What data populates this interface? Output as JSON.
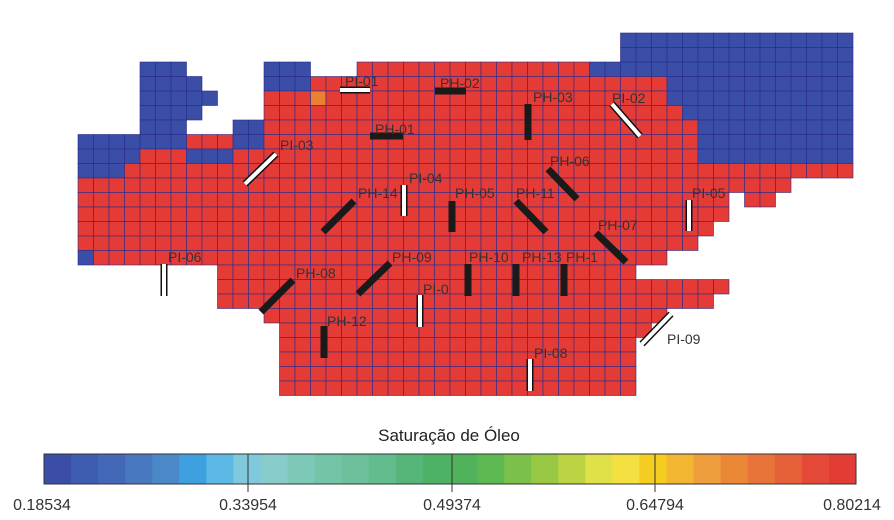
{
  "colors": {
    "red": "#e53b36",
    "blue": "#3a4ea8",
    "orange": "#ea8030",
    "cell_border": "#2b2b8a",
    "producer_fill": "#1a1a1a",
    "injector_fill": "#ffffff"
  },
  "map": {
    "wells": [
      {
        "id": "pi01",
        "label": "PI-01",
        "type": "injector"
      },
      {
        "id": "ph02",
        "label": "PH-02",
        "type": "producer"
      },
      {
        "id": "ph01",
        "label": "PH-01",
        "type": "producer"
      },
      {
        "id": "ph03",
        "label": "PH-03",
        "type": "producer"
      },
      {
        "id": "pi02",
        "label": "PI-02",
        "type": "injector"
      },
      {
        "id": "pi03",
        "label": "PI-03",
        "type": "injector"
      },
      {
        "id": "ph06",
        "label": "PH-06",
        "type": "producer"
      },
      {
        "id": "pi04",
        "label": "PI-04",
        "type": "injector"
      },
      {
        "id": "ph14",
        "label": "PH-14",
        "type": "producer"
      },
      {
        "id": "ph05",
        "label": "PH-05",
        "type": "producer"
      },
      {
        "id": "ph11",
        "label": "PH-11",
        "type": "producer"
      },
      {
        "id": "pi05",
        "label": "PI-05",
        "type": "injector"
      },
      {
        "id": "ph07",
        "label": "PH-07",
        "type": "producer"
      },
      {
        "id": "pi06",
        "label": "PI-06",
        "type": "injector"
      },
      {
        "id": "ph08",
        "label": "PH-08",
        "type": "producer"
      },
      {
        "id": "ph09",
        "label": "PH-09",
        "type": "producer"
      },
      {
        "id": "ph10",
        "label": "PH-10",
        "type": "producer"
      },
      {
        "id": "ph13",
        "label": "PH-13",
        "type": "producer"
      },
      {
        "id": "ph15",
        "label": "PH-1",
        "type": "producer"
      },
      {
        "id": "pi07",
        "label": "PI-0",
        "type": "injector"
      },
      {
        "id": "ph12",
        "label": "PH-12",
        "type": "producer"
      },
      {
        "id": "pi08",
        "label": "PI-08",
        "type": "injector"
      },
      {
        "id": "pi09",
        "label": "PI-09",
        "type": "injector"
      }
    ]
  },
  "colorbar": {
    "title": "Saturação de Óleo",
    "ticks": [
      "0.18534",
      "0.33954",
      "0.49374",
      "0.64794",
      "0.80214"
    ],
    "min": 0.18534,
    "max": 0.80214,
    "steps": [
      "#3a4ea8",
      "#3e5cb0",
      "#4468b8",
      "#4878c0",
      "#4a88c8",
      "#3ea0de",
      "#5cb8e4",
      "#80c8dc",
      "#88cccc",
      "#7ec8b8",
      "#74c4a8",
      "#6cc09c",
      "#62bc8c",
      "#56b67a",
      "#4eb266",
      "#50b25a",
      "#5eb852",
      "#7ac04a",
      "#98c844",
      "#bcd444",
      "#e0e048",
      "#f4e040",
      "#f5cc20",
      "#f3b630",
      "#ee9e3c",
      "#ea8838",
      "#e8743a",
      "#e6603a",
      "#e54a38",
      "#e33c36"
    ]
  }
}
